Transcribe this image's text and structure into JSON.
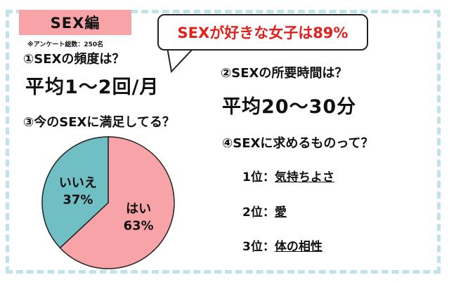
{
  "header": {
    "tab_title": "SEX編",
    "callout": "SEXが好きな女子は89%",
    "survey_note": "※アンケート総数：250名"
  },
  "q1": {
    "question": "①SEXの頻度は？",
    "answer": "平均1～2回/月"
  },
  "q2": {
    "question": "②SEXの所要時間は？",
    "answer": "平均20～30分"
  },
  "q3": {
    "question": "③今のSEXに満足してる？"
  },
  "q4": {
    "question": "④SEXに求めるものって？",
    "ranks": [
      {
        "rank": "1位：",
        "answer": "気持ちよさ"
      },
      {
        "rank": "2位：",
        "answer": "愛"
      },
      {
        "rank": "3位：",
        "answer": "体の相性"
      }
    ]
  },
  "colors": {
    "tab": "#f7a3a8",
    "callout_text": "#e3201d",
    "frame": "#bfe3e6",
    "pie_yes": "#f7a3a8",
    "pie_no": "#6fbfc4"
  },
  "chart_data": {
    "type": "pie",
    "title": "",
    "slices": [
      {
        "label": "はい",
        "value": 63,
        "value_label": "63%",
        "color": "#f7a3a8"
      },
      {
        "label": "いいえ",
        "value": 37,
        "value_label": "37%",
        "color": "#6fbfc4"
      }
    ]
  }
}
